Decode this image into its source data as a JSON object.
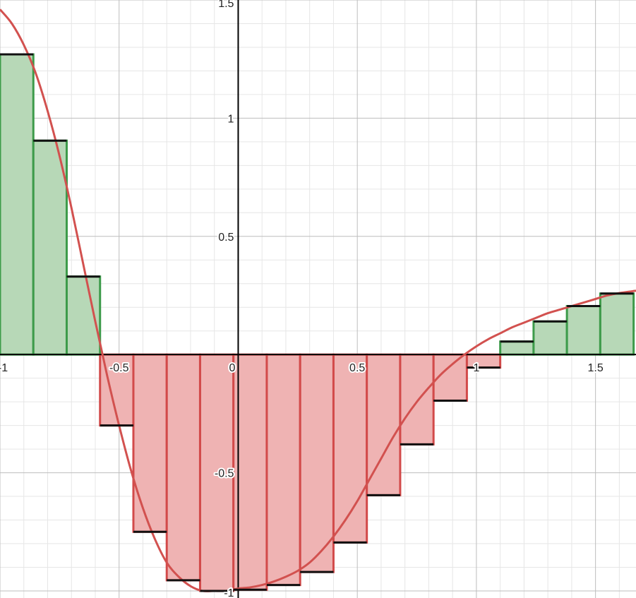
{
  "chart_data": {
    "type": "bar",
    "title": "",
    "xlabel": "",
    "ylabel": "",
    "xlim": [
      -1.0,
      1.67
    ],
    "ylim": [
      -1.03,
      1.5
    ],
    "grid": true,
    "x_ticks": [
      {
        "value": -1,
        "label": "-1"
      },
      {
        "value": -0.5,
        "label": "-0.5"
      },
      {
        "value": 0,
        "label": "0"
      },
      {
        "value": 0.5,
        "label": "0.5"
      },
      {
        "value": 1,
        "label": "1"
      },
      {
        "value": 1.5,
        "label": "1.5"
      }
    ],
    "y_ticks": [
      {
        "value": 1.5,
        "label": "1.5"
      },
      {
        "value": 1,
        "label": "1"
      },
      {
        "value": 0.5,
        "label": "0.5"
      },
      {
        "value": -0.5,
        "label": "-0.5"
      },
      {
        "value": -1,
        "label": "-1"
      }
    ],
    "bar_width": 0.14,
    "bars": [
      {
        "x": -1.0,
        "value": 1.27
      },
      {
        "x": -0.86,
        "value": 0.905
      },
      {
        "x": -0.72,
        "value": 0.33
      },
      {
        "x": -0.58,
        "value": -0.3
      },
      {
        "x": -0.44,
        "value": -0.75
      },
      {
        "x": -0.3,
        "value": -0.955
      },
      {
        "x": -0.16,
        "value": -1.0
      },
      {
        "x": -0.02,
        "value": -0.995
      },
      {
        "x": 0.12,
        "value": -0.975
      },
      {
        "x": 0.26,
        "value": -0.92
      },
      {
        "x": 0.4,
        "value": -0.795
      },
      {
        "x": 0.54,
        "value": -0.595
      },
      {
        "x": 0.68,
        "value": -0.38
      },
      {
        "x": 0.82,
        "value": -0.195
      },
      {
        "x": 0.96,
        "value": -0.055
      },
      {
        "x": 1.1,
        "value": 0.055
      },
      {
        "x": 1.24,
        "value": 0.14
      },
      {
        "x": 1.38,
        "value": 0.205
      },
      {
        "x": 1.52,
        "value": 0.258
      }
    ],
    "curve": {
      "x": [
        -1.0,
        -0.95,
        -0.9,
        -0.85,
        -0.8,
        -0.75,
        -0.7,
        -0.65,
        -0.6,
        -0.55,
        -0.5,
        -0.45,
        -0.4,
        -0.35,
        -0.3,
        -0.25,
        -0.2,
        -0.15,
        -0.1,
        -0.05,
        0.0,
        0.05,
        0.1,
        0.15,
        0.2,
        0.25,
        0.3,
        0.35,
        0.4,
        0.45,
        0.5,
        0.55,
        0.6,
        0.65,
        0.7,
        0.75,
        0.8,
        0.85,
        0.9,
        0.95,
        1.0,
        1.05,
        1.1,
        1.15,
        1.2,
        1.25,
        1.3,
        1.35,
        1.4,
        1.45,
        1.5,
        1.55,
        1.6,
        1.67
      ],
      "y": [
        1.46,
        1.4,
        1.31,
        1.19,
        1.03,
        0.84,
        0.62,
        0.38,
        0.14,
        -0.09,
        -0.3,
        -0.49,
        -0.65,
        -0.78,
        -0.88,
        -0.94,
        -0.98,
        -1.0,
        -1.0,
        -1.0,
        -0.99,
        -0.985,
        -0.975,
        -0.96,
        -0.94,
        -0.915,
        -0.88,
        -0.83,
        -0.77,
        -0.7,
        -0.62,
        -0.53,
        -0.44,
        -0.35,
        -0.27,
        -0.2,
        -0.14,
        -0.085,
        -0.04,
        0.0,
        0.035,
        0.065,
        0.09,
        0.115,
        0.135,
        0.155,
        0.175,
        0.19,
        0.205,
        0.22,
        0.235,
        0.25,
        0.26,
        0.27
      ]
    },
    "colors": {
      "positive_fill": "#b7d8b7",
      "positive_stroke": "#3d9b4a",
      "negative_fill": "#efb3b3",
      "negative_stroke": "#d24a4a",
      "curve": "#d2514f",
      "bar_top": "#111111",
      "axis": "#000000",
      "grid_major": "#bdbdbd",
      "grid_minor": "#e6e6e6"
    }
  }
}
